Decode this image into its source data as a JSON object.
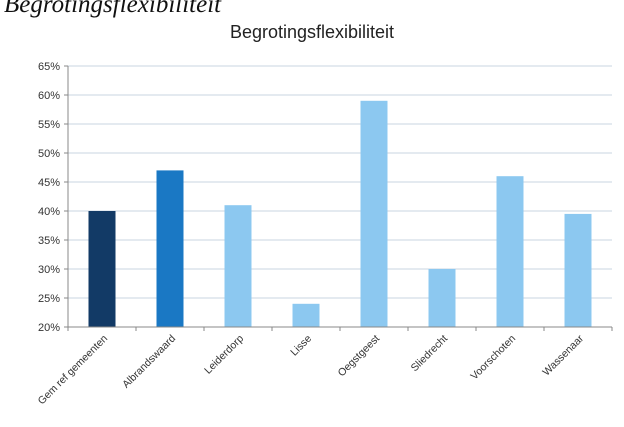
{
  "document": {
    "heading": "Begrotingsflexibiliteit"
  },
  "chart_data": {
    "type": "bar",
    "title": "Begrotingsflexibiliteit",
    "categories": [
      "Gem ref gemeenten",
      "Albrandswaard",
      "Leiderdorp",
      "Lisse",
      "Oegstgeest",
      "Sliedrecht",
      "Voorschoten",
      "Wassenaar"
    ],
    "values": [
      40,
      47,
      41,
      24,
      59,
      30,
      46,
      39.5
    ],
    "ylim": [
      20,
      65
    ],
    "yticks": [
      20,
      25,
      30,
      35,
      40,
      45,
      50,
      55,
      60,
      65
    ],
    "ytick_labels": [
      "20%",
      "25%",
      "30%",
      "35%",
      "40%",
      "45%",
      "50%",
      "55%",
      "60%",
      "65%"
    ],
    "bar_colors": [
      "#123a66",
      "#1a78c4",
      "#8cc8f0",
      "#8cc8f0",
      "#8cc8f0",
      "#8cc8f0",
      "#8cc8f0",
      "#8cc8f0"
    ],
    "grid": true,
    "legend": "none"
  }
}
